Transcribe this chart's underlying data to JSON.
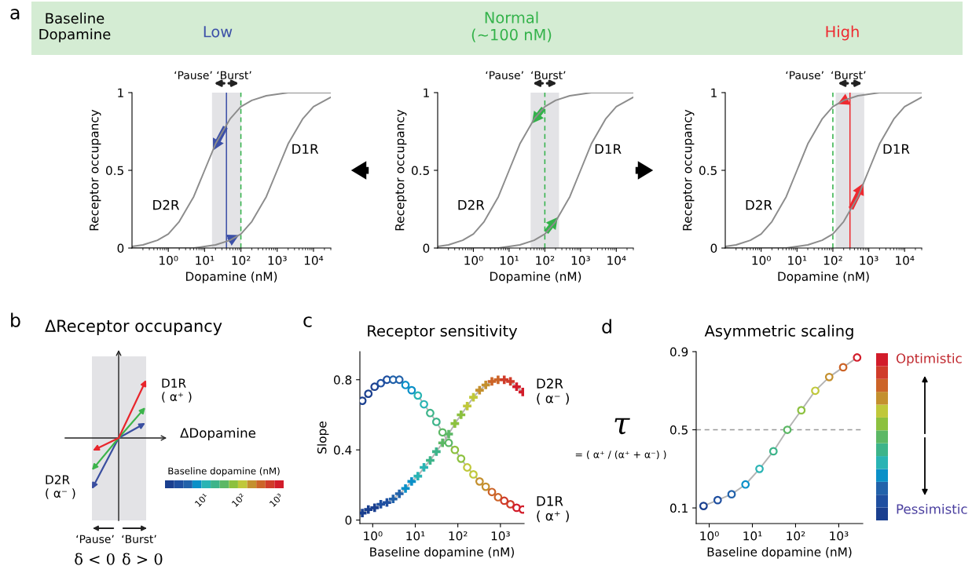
{
  "chart_data": [
    {
      "type": "line",
      "title": "Low",
      "xlabel": "Dopamine (nM)",
      "ylabel": "Receptor occupancy",
      "log": "x",
      "x": [
        0.1,
        0.2,
        0.5,
        1,
        2,
        5,
        10,
        20,
        50,
        100,
        200,
        500,
        1000,
        2000,
        5000,
        10000,
        30000
      ],
      "series": [
        {
          "name": "D2R",
          "color": "#8c8c8c",
          "values": [
            0.01,
            0.02,
            0.05,
            0.09,
            0.17,
            0.33,
            0.5,
            0.67,
            0.83,
            0.91,
            0.95,
            0.98,
            0.99,
            1,
            1,
            1,
            1
          ]
        },
        {
          "name": "D1R",
          "color": "#8c8c8c",
          "values": [
            0,
            0,
            0,
            0,
            0,
            0,
            0.01,
            0.02,
            0.05,
            0.09,
            0.17,
            0.33,
            0.5,
            0.67,
            0.83,
            0.91,
            0.97
          ]
        }
      ],
      "xlim": [
        0.1,
        30000
      ],
      "xticks": [
        {
          "value": 1,
          "label": "10⁰"
        },
        {
          "value": 10,
          "label": "10¹"
        },
        {
          "value": 100,
          "label": "10²"
        },
        {
          "value": 1000,
          "label": "10³"
        },
        {
          "value": 10000,
          "label": "10⁴"
        }
      ],
      "ylim": [
        0,
        1
      ],
      "yticks": [
        0,
        0.5,
        1
      ],
      "bands": [
        {
          "axis": "x",
          "from": 16,
          "to": 100,
          "color": "#e3e3e6"
        }
      ],
      "ref_lines": [
        {
          "axis": "x",
          "value": 100,
          "color": "#33b24a",
          "line_style": "dashed"
        },
        {
          "axis": "x",
          "value": 40,
          "color": "#3c50a8",
          "line_style": "solid"
        }
      ],
      "annotations": [
        "a",
        "Baseline\nDopamine",
        "‘Pause’",
        "‘Burst’"
      ]
    },
    {
      "type": "line",
      "title": "Normal\n(~100 nM)",
      "xlabel": "Dopamine (nM)",
      "ylabel": "Receptor occupancy",
      "log": "x",
      "x": [
        0.1,
        0.2,
        0.5,
        1,
        2,
        5,
        10,
        20,
        50,
        100,
        200,
        500,
        1000,
        2000,
        5000,
        10000,
        30000
      ],
      "series": [
        {
          "name": "D2R",
          "color": "#8c8c8c",
          "values": [
            0.01,
            0.02,
            0.05,
            0.09,
            0.17,
            0.33,
            0.5,
            0.67,
            0.83,
            0.91,
            0.95,
            0.98,
            0.99,
            1,
            1,
            1,
            1
          ]
        },
        {
          "name": "D1R",
          "color": "#8c8c8c",
          "values": [
            0,
            0,
            0,
            0,
            0,
            0,
            0.01,
            0.02,
            0.05,
            0.09,
            0.17,
            0.33,
            0.5,
            0.67,
            0.83,
            0.91,
            0.97
          ]
        }
      ],
      "xlim": [
        0.1,
        30000
      ],
      "xticks": [
        {
          "value": 1,
          "label": "10⁰"
        },
        {
          "value": 10,
          "label": "10¹"
        },
        {
          "value": 100,
          "label": "10²"
        },
        {
          "value": 1000,
          "label": "10³"
        },
        {
          "value": 10000,
          "label": "10⁴"
        }
      ],
      "ylim": [
        0,
        1
      ],
      "yticks": [
        0,
        0.5,
        1
      ],
      "bands": [
        {
          "axis": "x",
          "from": 40,
          "to": 250,
          "color": "#e3e3e6"
        }
      ],
      "ref_lines": [
        {
          "axis": "x",
          "value": 100,
          "color": "#33b24a",
          "line_style": "dashed"
        }
      ],
      "annotations": [
        "‘Pause’",
        "‘Burst’"
      ]
    },
    {
      "type": "line",
      "title": "High",
      "xlabel": "Dopamine (nM)",
      "ylabel": "Receptor occupancy",
      "log": "x",
      "x": [
        0.1,
        0.2,
        0.5,
        1,
        2,
        5,
        10,
        20,
        50,
        100,
        200,
        500,
        1000,
        2000,
        5000,
        10000,
        30000
      ],
      "series": [
        {
          "name": "D2R",
          "color": "#8c8c8c",
          "values": [
            0.01,
            0.02,
            0.05,
            0.09,
            0.17,
            0.33,
            0.5,
            0.67,
            0.83,
            0.91,
            0.95,
            0.98,
            0.99,
            1,
            1,
            1,
            1
          ]
        },
        {
          "name": "D1R",
          "color": "#8c8c8c",
          "values": [
            0,
            0,
            0,
            0,
            0,
            0,
            0.01,
            0.02,
            0.05,
            0.09,
            0.17,
            0.33,
            0.5,
            0.67,
            0.83,
            0.91,
            0.97
          ]
        }
      ],
      "xlim": [
        0.1,
        30000
      ],
      "xticks": [
        {
          "value": 1,
          "label": "10⁰"
        },
        {
          "value": 10,
          "label": "10¹"
        },
        {
          "value": 100,
          "label": "10²"
        },
        {
          "value": 1000,
          "label": "10³"
        },
        {
          "value": 10000,
          "label": "10⁴"
        }
      ],
      "ylim": [
        0,
        1
      ],
      "yticks": [
        0,
        0.5,
        1
      ],
      "bands": [
        {
          "axis": "x",
          "from": 120,
          "to": 750,
          "color": "#e3e3e6"
        }
      ],
      "ref_lines": [
        {
          "axis": "x",
          "value": 100,
          "color": "#33b24a",
          "line_style": "dashed"
        },
        {
          "axis": "x",
          "value": 300,
          "color": "#ee2a30",
          "line_style": "solid"
        }
      ],
      "annotations": [
        "‘Pause’",
        "‘Burst’"
      ]
    },
    {
      "type": "other",
      "title": "ΔReceptor occupancy",
      "annotations": [
        "b",
        "ΔDopamine",
        "D1R\n( α⁺ )",
        "D2R\n( α⁻ )",
        "Baseline dopamine (nM)",
        "10¹",
        "10²",
        "10³",
        "‘Pause’",
        "‘Burst’",
        "δ < 0",
        "δ > 0"
      ]
    },
    {
      "type": "line",
      "title": "Receptor sensitivity",
      "xlabel": "Baseline dopamine (nM)",
      "ylabel": "Slope",
      "log": "x",
      "x": [
        0.57,
        0.79,
        1.11,
        1.55,
        2.16,
        3.02,
        4.22,
        5.89,
        8.22,
        11.5,
        16.0,
        22.4,
        31.3,
        43.7,
        61.0,
        85.1,
        119,
        166,
        232,
        324,
        452,
        631,
        881,
        1230,
        1718,
        2399,
        3350
      ],
      "series": [
        {
          "name": "D2R\n( α⁻ )",
          "marker": "cross",
          "color": "#b4b4b4",
          "values": [
            0.04,
            0.06,
            0.07,
            0.09,
            0.1,
            0.12,
            0.15,
            0.18,
            0.22,
            0.25,
            0.3,
            0.34,
            0.39,
            0.44,
            0.49,
            0.55,
            0.6,
            0.65,
            0.7,
            0.74,
            0.77,
            0.79,
            0.8,
            0.8,
            0.79,
            0.76,
            0.73
          ],
          "colors": [
            "#1a3f8f",
            "#1a3f8f",
            "#1a3f8f",
            "#1f4fa0",
            "#1f4fa0",
            "#2262aa",
            "#2262aa",
            "#0a90c8",
            "#0a90c8",
            "#2ab4b4",
            "#2ab4b4",
            "#3db48a",
            "#3db48a",
            "#5cb865",
            "#5cb865",
            "#8cc13f",
            "#8cc13f",
            "#c0c83a",
            "#c0c83a",
            "#c4902e",
            "#c4902e",
            "#cc6428",
            "#cc6428",
            "#d03c2a",
            "#d03c2a",
            "#d21c2a",
            "#d21c2a"
          ]
        },
        {
          "name": "D1R\n( α⁺ )",
          "marker": "circle",
          "color": "#b4b4b4",
          "values": [
            0.68,
            0.72,
            0.76,
            0.78,
            0.8,
            0.8,
            0.8,
            0.77,
            0.74,
            0.71,
            0.66,
            0.61,
            0.56,
            0.5,
            0.44,
            0.4,
            0.35,
            0.3,
            0.26,
            0.22,
            0.19,
            0.16,
            0.13,
            0.11,
            0.09,
            0.07,
            0.06
          ],
          "colors": [
            "#1a3f8f",
            "#1a3f8f",
            "#1a3f8f",
            "#1f4fa0",
            "#1f4fa0",
            "#2262aa",
            "#2262aa",
            "#0a90c8",
            "#0a90c8",
            "#2ab4b4",
            "#2ab4b4",
            "#3db48a",
            "#3db48a",
            "#5cb865",
            "#5cb865",
            "#8cc13f",
            "#8cc13f",
            "#c0c83a",
            "#c0c83a",
            "#c4902e",
            "#c4902e",
            "#cc6428",
            "#cc6428",
            "#d03c2a",
            "#d03c2a",
            "#d21c2a",
            "#d21c2a"
          ]
        }
      ],
      "xlim": [
        0.5,
        3600
      ],
      "xticks": [
        {
          "value": 1,
          "label": "10⁰"
        },
        {
          "value": 10,
          "label": "10¹"
        },
        {
          "value": 100,
          "label": "10²"
        },
        {
          "value": 1000,
          "label": "10³"
        }
      ],
      "ylim": [
        -0.02,
        0.96
      ],
      "yticks": [
        0,
        0.4,
        0.8
      ],
      "annotations": [
        "c"
      ]
    },
    {
      "type": "line",
      "title": "Asymmetric scaling",
      "xlabel": "Baseline dopamine (nM)",
      "ylabel": "τ",
      "log": "x",
      "x": [
        0.74,
        1.57,
        3.3,
        6.93,
        14.6,
        30.7,
        64.6,
        136,
        286,
        601,
        1265,
        2661
      ],
      "series": [
        {
          "marker": "circle",
          "color": "#b4b4b4",
          "values": [
            0.11,
            0.14,
            0.17,
            0.22,
            0.3,
            0.39,
            0.5,
            0.6,
            0.7,
            0.77,
            0.82,
            0.87
          ],
          "colors": [
            "#1a3f8f",
            "#1f4fa0",
            "#2262aa",
            "#0a90c8",
            "#2ab4b4",
            "#3db48a",
            "#5cb865",
            "#8cc13f",
            "#c0c83a",
            "#c4902e",
            "#cc6428",
            "#d21c2a"
          ]
        }
      ],
      "xlim": [
        0.5,
        3600
      ],
      "xticks": [
        {
          "value": 1,
          "label": "10⁰"
        },
        {
          "value": 10,
          "label": "10¹"
        },
        {
          "value": 100,
          "label": "10²"
        },
        {
          "value": 1000,
          "label": "10³"
        }
      ],
      "ylim": [
        0.02,
        0.9
      ],
      "yticks": [
        0.1,
        0.5,
        0.9
      ],
      "ref_lines": [
        {
          "axis": "y",
          "value": 0.5,
          "color": "#999999",
          "line_style": "dashed"
        }
      ],
      "annotations": [
        "d",
        "= ( α⁺ / (α⁺ + α⁻) )",
        "Optimistic",
        "Pessimistic"
      ]
    }
  ]
}
